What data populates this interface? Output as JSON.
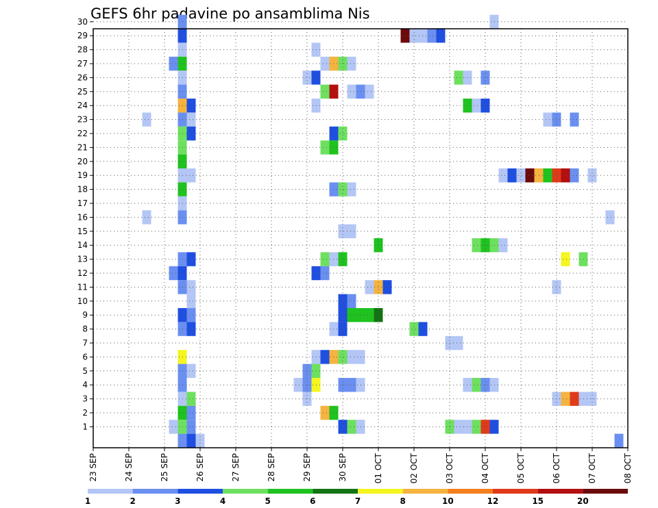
{
  "chart_data": {
    "type": "heatmap",
    "title": "GEFS 6hr padavine po ansamblima Nis",
    "x_tick_labels": [
      "23 SEP",
      "24 SEP",
      "25 SEP",
      "26 SEP",
      "27 SEP",
      "28 SEP",
      "29 SEP",
      "30 SEP",
      "01 OCT",
      "02 OCT",
      "03 OCT",
      "04 OCT",
      "05 OCT",
      "06 OCT",
      "07 OCT",
      "08 OCT"
    ],
    "y_tick_labels": [
      "1",
      "2",
      "3",
      "4",
      "5",
      "6",
      "7",
      "8",
      "9",
      "10",
      "11",
      "12",
      "13",
      "14",
      "15",
      "16",
      "17",
      "18",
      "19",
      "20",
      "21",
      "22",
      "23",
      "24",
      "25",
      "26",
      "27",
      "28",
      "29",
      "30"
    ],
    "x_step_hours": 6,
    "x_range_steps": [
      0,
      60
    ],
    "y_range": [
      0,
      30
    ],
    "grid": true,
    "colorbar": {
      "labels": [
        "1",
        "2",
        "3",
        "4",
        "5",
        "6",
        "7",
        "8",
        "10",
        "12",
        "15",
        "20"
      ],
      "colors": [
        "#b3c6f5",
        "#6a8ff0",
        "#1f4fe0",
        "#6ee060",
        "#1fc21f",
        "#137313",
        "#f5f51f",
        "#f5b33f",
        "#f57f1f",
        "#e03a1a",
        "#b30f0f",
        "#6b0a0a"
      ]
    },
    "cells": [
      [
        10,
        30,
        2
      ],
      [
        10,
        29,
        3
      ],
      [
        10,
        28,
        1
      ],
      [
        9,
        27,
        2
      ],
      [
        10,
        27,
        5
      ],
      [
        10,
        26,
        1
      ],
      [
        10,
        25,
        2
      ],
      [
        10,
        24,
        8
      ],
      [
        11,
        24,
        3
      ],
      [
        10,
        23,
        2
      ],
      [
        11,
        23,
        1
      ],
      [
        6,
        23,
        1
      ],
      [
        10,
        22,
        4
      ],
      [
        11,
        22,
        3
      ],
      [
        10,
        21,
        4
      ],
      [
        10,
        20,
        5
      ],
      [
        10,
        19,
        1
      ],
      [
        11,
        19,
        1
      ],
      [
        10,
        18,
        5
      ],
      [
        10,
        17,
        1
      ],
      [
        10,
        16,
        2
      ],
      [
        6,
        16,
        1
      ],
      [
        10,
        13,
        2
      ],
      [
        11,
        13,
        3
      ],
      [
        9,
        12,
        2
      ],
      [
        10,
        12,
        3
      ],
      [
        10,
        11,
        2
      ],
      [
        11,
        11,
        1
      ],
      [
        11,
        10,
        1
      ],
      [
        10,
        9,
        3
      ],
      [
        11,
        9,
        2
      ],
      [
        10,
        8,
        2
      ],
      [
        11,
        8,
        3
      ],
      [
        10,
        6,
        7
      ],
      [
        10,
        5,
        2
      ],
      [
        11,
        5,
        1
      ],
      [
        10,
        4,
        2
      ],
      [
        10,
        3,
        1
      ],
      [
        11,
        3,
        4
      ],
      [
        10,
        2,
        5
      ],
      [
        11,
        2,
        2
      ],
      [
        9,
        1,
        1
      ],
      [
        10,
        1,
        4
      ],
      [
        11,
        1,
        2
      ],
      [
        10,
        0,
        2
      ],
      [
        11,
        0,
        3
      ],
      [
        12,
        0,
        1
      ],
      [
        25,
        28,
        1
      ],
      [
        26,
        27,
        1
      ],
      [
        27,
        27,
        9
      ],
      [
        28,
        27,
        4
      ],
      [
        29,
        27,
        1
      ],
      [
        24,
        26,
        1
      ],
      [
        25,
        26,
        3
      ],
      [
        26,
        25,
        4
      ],
      [
        27,
        25,
        15
      ],
      [
        29,
        25,
        1
      ],
      [
        30,
        25,
        2
      ],
      [
        31,
        25,
        1
      ],
      [
        25,
        24,
        1
      ],
      [
        27,
        22,
        3
      ],
      [
        28,
        22,
        4
      ],
      [
        26,
        21,
        4
      ],
      [
        27,
        21,
        5
      ],
      [
        27,
        18,
        2
      ],
      [
        28,
        18,
        4
      ],
      [
        29,
        18,
        1
      ],
      [
        28,
        15,
        1
      ],
      [
        29,
        15,
        1
      ],
      [
        26,
        13,
        4
      ],
      [
        27,
        13,
        1
      ],
      [
        28,
        13,
        5
      ],
      [
        25,
        12,
        3
      ],
      [
        26,
        12,
        2
      ],
      [
        28,
        10,
        3
      ],
      [
        29,
        10,
        2
      ],
      [
        28,
        9,
        3
      ],
      [
        29,
        9,
        5
      ],
      [
        30,
        9,
        5
      ],
      [
        31,
        9,
        5
      ],
      [
        32,
        9,
        6
      ],
      [
        28,
        8,
        3
      ],
      [
        27,
        8,
        1
      ],
      [
        25,
        6,
        1
      ],
      [
        26,
        6,
        3
      ],
      [
        27,
        6,
        8
      ],
      [
        28,
        6,
        4
      ],
      [
        29,
        6,
        1
      ],
      [
        30,
        6,
        1
      ],
      [
        24,
        5,
        2
      ],
      [
        25,
        5,
        4
      ],
      [
        23,
        4,
        1
      ],
      [
        24,
        4,
        2
      ],
      [
        25,
        4,
        7
      ],
      [
        28,
        4,
        2
      ],
      [
        29,
        4,
        2
      ],
      [
        30,
        4,
        1
      ],
      [
        24,
        3,
        1
      ],
      [
        26,
        2,
        8
      ],
      [
        27,
        2,
        5
      ],
      [
        30,
        1,
        1
      ],
      [
        28,
        1,
        3
      ],
      [
        29,
        1,
        4
      ],
      [
        30,
        1,
        1
      ],
      [
        31,
        11,
        1
      ],
      [
        32,
        11,
        8
      ],
      [
        33,
        11,
        3
      ],
      [
        32,
        14,
        5
      ],
      [
        35,
        29,
        20
      ],
      [
        36,
        29,
        1
      ],
      [
        37,
        29,
        1
      ],
      [
        38,
        29,
        2
      ],
      [
        39,
        29,
        3
      ],
      [
        36,
        8,
        4
      ],
      [
        37,
        8,
        3
      ],
      [
        41,
        26,
        4
      ],
      [
        42,
        26,
        1
      ],
      [
        44,
        26,
        2
      ],
      [
        43,
        24,
        1
      ],
      [
        42,
        24,
        5
      ],
      [
        44,
        24,
        3
      ],
      [
        40,
        7,
        1
      ],
      [
        41,
        7,
        1
      ],
      [
        43,
        14,
        4
      ],
      [
        44,
        14,
        5
      ],
      [
        45,
        14,
        4
      ],
      [
        46,
        14,
        1
      ],
      [
        42,
        4,
        1
      ],
      [
        43,
        4,
        4
      ],
      [
        44,
        4,
        2
      ],
      [
        45,
        4,
        1
      ],
      [
        40,
        1,
        4
      ],
      [
        41,
        1,
        1
      ],
      [
        42,
        1,
        1
      ],
      [
        43,
        1,
        4
      ],
      [
        44,
        1,
        12
      ],
      [
        45,
        1,
        3
      ],
      [
        45,
        30,
        1
      ],
      [
        46,
        19,
        1
      ],
      [
        47,
        19,
        3
      ],
      [
        48,
        19,
        1
      ],
      [
        49,
        19,
        20
      ],
      [
        50,
        19,
        9
      ],
      [
        51,
        19,
        5
      ],
      [
        52,
        19,
        12
      ],
      [
        53,
        19,
        15
      ],
      [
        54,
        19,
        2
      ],
      [
        56,
        19,
        1
      ],
      [
        51,
        23,
        1
      ],
      [
        52,
        23,
        2
      ],
      [
        54,
        23,
        2
      ],
      [
        52,
        11,
        1
      ],
      [
        53,
        13,
        7
      ],
      [
        55,
        13,
        4
      ],
      [
        52,
        3,
        1
      ],
      [
        53,
        3,
        9
      ],
      [
        54,
        3,
        12
      ],
      [
        55,
        3,
        1
      ],
      [
        56,
        3,
        1
      ],
      [
        58,
        16,
        1
      ],
      [
        59,
        0,
        2
      ]
    ]
  }
}
